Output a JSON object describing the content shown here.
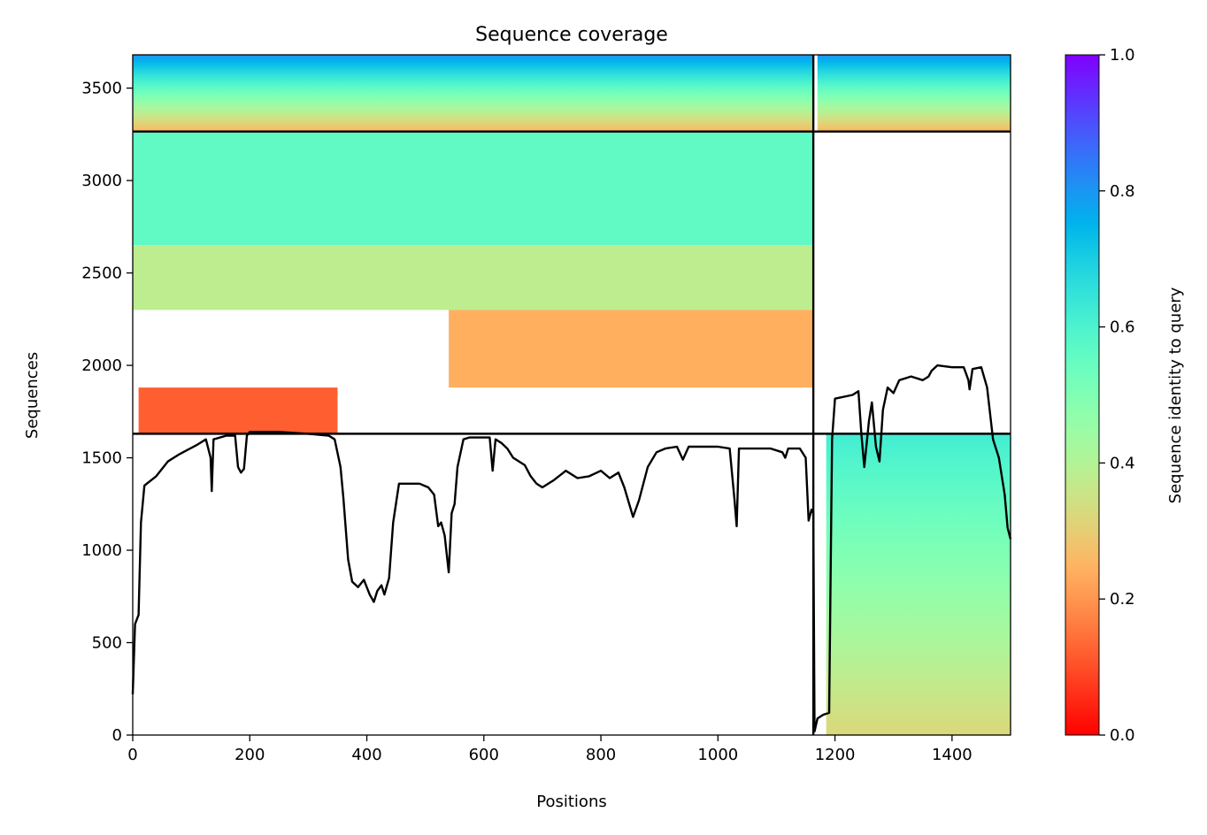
{
  "chart_data": {
    "type": "heatmap",
    "title": "Sequence coverage",
    "xlabel": "Positions",
    "ylabel": "Sequences",
    "xlim": [
      0,
      1500
    ],
    "ylim": [
      0,
      3680
    ],
    "x_ticks": [
      0,
      200,
      400,
      600,
      800,
      1000,
      1200,
      1400
    ],
    "y_ticks": [
      0,
      500,
      1000,
      1500,
      2000,
      2500,
      3000,
      3500
    ],
    "grid": false,
    "colormap": "rainbow_r",
    "colorbar": {
      "label": "Sequence identity to query",
      "range": [
        0.0,
        1.0
      ],
      "ticks": [
        0.0,
        0.2,
        0.4,
        0.6,
        0.8,
        1.0
      ],
      "tick_labels": [
        "0.0",
        "0.2",
        "0.4",
        "0.6",
        "0.8",
        "1.0"
      ]
    },
    "chain_boundaries": {
      "positions": [
        1163
      ],
      "sequence_counts": [
        1630,
        3265
      ]
    },
    "coverage_blocks": [
      {
        "group": "paired",
        "x": [
          0,
          1163
        ],
        "y": [
          3265,
          3680
        ],
        "identity_top": 0.8,
        "identity_bottom": 0.25
      },
      {
        "group": "paired",
        "x": [
          1170,
          1500
        ],
        "y": [
          3265,
          3680
        ],
        "identity_top": 0.8,
        "identity_bottom": 0.25
      },
      {
        "group": "chain A",
        "x": [
          0,
          1163
        ],
        "y": [
          2650,
          3265
        ],
        "identity": 0.56
      },
      {
        "group": "chain A",
        "x": [
          0,
          1163
        ],
        "y": [
          2300,
          2650
        ],
        "identity": 0.38
      },
      {
        "group": "chain A",
        "x": [
          540,
          1163
        ],
        "y": [
          1880,
          2300
        ],
        "identity": 0.24
      },
      {
        "group": "chain A",
        "x": [
          10,
          350
        ],
        "y": [
          1630,
          1880
        ],
        "identity": 0.12
      },
      {
        "group": "chain B",
        "x": [
          1185,
          1500
        ],
        "y": [
          0,
          1630
        ],
        "identity_top": 0.62,
        "identity_bottom": 0.32
      }
    ],
    "series": [
      {
        "type": "line",
        "color": "#000000",
        "points": [
          [
            0,
            220
          ],
          [
            4,
            600
          ],
          [
            10,
            650
          ],
          [
            14,
            1150
          ],
          [
            20,
            1350
          ],
          [
            40,
            1400
          ],
          [
            60,
            1480
          ],
          [
            80,
            1520
          ],
          [
            110,
            1570
          ],
          [
            125,
            1600
          ],
          [
            133,
            1500
          ],
          [
            135,
            1320
          ],
          [
            138,
            1600
          ],
          [
            160,
            1620
          ],
          [
            175,
            1620
          ],
          [
            180,
            1450
          ],
          [
            185,
            1420
          ],
          [
            190,
            1440
          ],
          [
            195,
            1620
          ],
          [
            200,
            1640
          ],
          [
            250,
            1640
          ],
          [
            300,
            1630
          ],
          [
            335,
            1620
          ],
          [
            345,
            1600
          ],
          [
            355,
            1450
          ],
          [
            360,
            1280
          ],
          [
            368,
            950
          ],
          [
            375,
            830
          ],
          [
            385,
            800
          ],
          [
            395,
            840
          ],
          [
            405,
            760
          ],
          [
            412,
            720
          ],
          [
            418,
            780
          ],
          [
            425,
            810
          ],
          [
            430,
            760
          ],
          [
            438,
            850
          ],
          [
            445,
            1150
          ],
          [
            455,
            1360
          ],
          [
            490,
            1360
          ],
          [
            505,
            1340
          ],
          [
            515,
            1300
          ],
          [
            522,
            1130
          ],
          [
            527,
            1150
          ],
          [
            533,
            1080
          ],
          [
            540,
            880
          ],
          [
            545,
            1200
          ],
          [
            550,
            1250
          ],
          [
            555,
            1450
          ],
          [
            565,
            1600
          ],
          [
            575,
            1610
          ],
          [
            610,
            1610
          ],
          [
            615,
            1430
          ],
          [
            620,
            1600
          ],
          [
            630,
            1580
          ],
          [
            640,
            1550
          ],
          [
            650,
            1500
          ],
          [
            670,
            1460
          ],
          [
            680,
            1400
          ],
          [
            690,
            1360
          ],
          [
            700,
            1340
          ],
          [
            720,
            1380
          ],
          [
            740,
            1430
          ],
          [
            760,
            1390
          ],
          [
            780,
            1400
          ],
          [
            800,
            1430
          ],
          [
            815,
            1390
          ],
          [
            830,
            1420
          ],
          [
            840,
            1340
          ],
          [
            855,
            1180
          ],
          [
            865,
            1270
          ],
          [
            880,
            1450
          ],
          [
            895,
            1530
          ],
          [
            910,
            1550
          ],
          [
            930,
            1560
          ],
          [
            940,
            1490
          ],
          [
            950,
            1560
          ],
          [
            1000,
            1560
          ],
          [
            1020,
            1550
          ],
          [
            1028,
            1280
          ],
          [
            1032,
            1130
          ],
          [
            1036,
            1550
          ],
          [
            1060,
            1550
          ],
          [
            1090,
            1550
          ],
          [
            1100,
            1540
          ],
          [
            1110,
            1530
          ],
          [
            1115,
            1500
          ],
          [
            1120,
            1550
          ],
          [
            1140,
            1550
          ],
          [
            1150,
            1500
          ],
          [
            1155,
            1160
          ],
          [
            1160,
            1220
          ],
          [
            1163,
            1200
          ],
          [
            1165,
            20
          ],
          [
            1170,
            90
          ],
          [
            1180,
            110
          ],
          [
            1190,
            120
          ],
          [
            1195,
            1600
          ],
          [
            1200,
            1820
          ],
          [
            1230,
            1840
          ],
          [
            1240,
            1860
          ],
          [
            1245,
            1630
          ],
          [
            1250,
            1450
          ],
          [
            1258,
            1700
          ],
          [
            1263,
            1800
          ],
          [
            1270,
            1560
          ],
          [
            1276,
            1480
          ],
          [
            1282,
            1760
          ],
          [
            1290,
            1880
          ],
          [
            1300,
            1850
          ],
          [
            1310,
            1920
          ],
          [
            1330,
            1940
          ],
          [
            1350,
            1920
          ],
          [
            1360,
            1940
          ],
          [
            1365,
            1970
          ],
          [
            1375,
            2000
          ],
          [
            1400,
            1990
          ],
          [
            1420,
            1990
          ],
          [
            1428,
            1920
          ],
          [
            1430,
            1870
          ],
          [
            1435,
            1980
          ],
          [
            1450,
            1990
          ],
          [
            1460,
            1880
          ],
          [
            1470,
            1600
          ],
          [
            1480,
            1500
          ],
          [
            1490,
            1300
          ],
          [
            1495,
            1120
          ],
          [
            1500,
            1060
          ]
        ]
      }
    ]
  }
}
